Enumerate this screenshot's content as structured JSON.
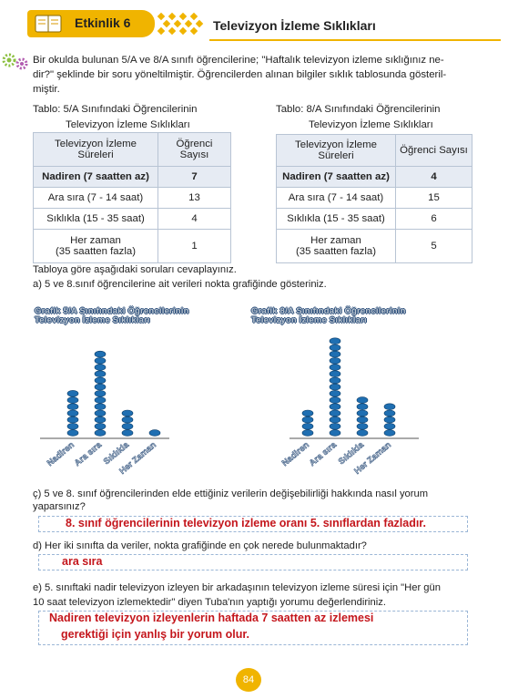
{
  "header": {
    "badge_label": "Etkinlik 6",
    "title": "Televizyon İzleme Sıklıkları"
  },
  "intro": {
    "lines": [
      "Bir okulda bulunan 5/A ve 8/A sınıfı öğrencilerine; \"Haftalık televizyon izleme sıklığınız ne-",
      "dir?\" şeklinde bir soru yöneltilmiştir. Öğrencilerden alınan bilgiler sıklık tablosunda gösteril-",
      "miştir."
    ]
  },
  "table_5a": {
    "caption_line1": "Tablo: 5/A Sınıfındaki Öğrencilerinin",
    "caption_line2": "Televizyon İzleme Sıklıkları",
    "header_col1_line1": "Televizyon İzleme",
    "header_col1_line2": "Süreleri",
    "header_col2": "Öğrenci Sayısı",
    "rows": [
      {
        "label": "Nadiren (7 saatten az)",
        "value": "7"
      },
      {
        "label": "Ara sıra (7 - 14 saat)",
        "value": "13"
      },
      {
        "label": "Sıklıkla (15 - 35 saat)",
        "value": "4"
      },
      {
        "label_line1": "Her zaman",
        "label_line2": "(35 saatten fazla)",
        "value": "1"
      }
    ]
  },
  "table_8a": {
    "caption_line1": "Tablo: 8/A Sınıfındaki Öğrencilerinin",
    "caption_line2": "Televizyon İzleme Sıklıkları",
    "header_col1_line1": "Televizyon İzleme",
    "header_col1_line2": "Süreleri",
    "header_col2": "Öğrenci Sayısı",
    "rows": [
      {
        "label": "Nadiren (7 saatten az)",
        "value": "4"
      },
      {
        "label": "Ara sıra (7 - 14 saat)",
        "value": "15"
      },
      {
        "label": "Sıklıkla (15 - 35 saat)",
        "value": "6"
      },
      {
        "label_line1": "Her zaman",
        "label_line2": "(35 saatten fazla)",
        "value": "5"
      }
    ]
  },
  "instruction": "Tabloya göre aşağıdaki soruları cevaplayınız.",
  "question_a": "a) 5 ve 8.sınıf öğrencilerine ait verileri nokta grafiğinde gösteriniz.",
  "chart_data": [
    {
      "type": "dot",
      "title_line1": "Grafik 5/A Sınıfındaki Öğrencilerinin",
      "title_line2": "Televizyon İzleme Sıklıkları",
      "categories": [
        "Nadiren",
        "Ara sıra",
        "Sıklıkla",
        "Her Zaman"
      ],
      "values": [
        7,
        13,
        4,
        1
      ],
      "dot_color": "#1f6fb2"
    },
    {
      "type": "dot",
      "title_line1": "Grafik 8/A Sınıfındaki Öğrencilerinin",
      "title_line2": "Televizyon İzleme Sıklıkları",
      "categories": [
        "Nadiren",
        "Ara sıra",
        "Sıklıkla",
        "Her Zaman"
      ],
      "values": [
        4,
        15,
        6,
        5
      ],
      "dot_color": "#1f6fb2"
    }
  ],
  "question_c": {
    "line1": "ç) 5 ve 8. sınıf öğrencilerinden elde ettiğiniz verilerin değişebilirliği hakkında nasıl yorum",
    "line2": "yaparsınız?",
    "answer": "8. sınıf öğrencilerinin televizyon izleme oranı 5. sınıflardan fazladır."
  },
  "question_d": {
    "text": "d) Her iki sınıfta da veriler, nokta grafiğinde en çok nerede bulunmaktadır?",
    "answer": "ara sıra"
  },
  "question_e": {
    "line1": "e) 5. sınıftaki nadir televizyon izleyen bir arkadaşının televizyon izleme süresi için \"Her gün",
    "line2": "10 saat televizyon izlemektedir\" diyen Tuba'nın yaptığı yorumu değerlendiriniz.",
    "answer_line1": "Nadiren televizyon izleyenlerin haftada 7 saatten az izlemesi",
    "answer_line2": "gerektiği için yanlış bir yorum olur."
  },
  "page_number": "84",
  "colors": {
    "accent": "#f0b400",
    "table_header": "#e6ebf3",
    "answer_red": "#c4161c",
    "dot_blue": "#1f6fb2"
  }
}
